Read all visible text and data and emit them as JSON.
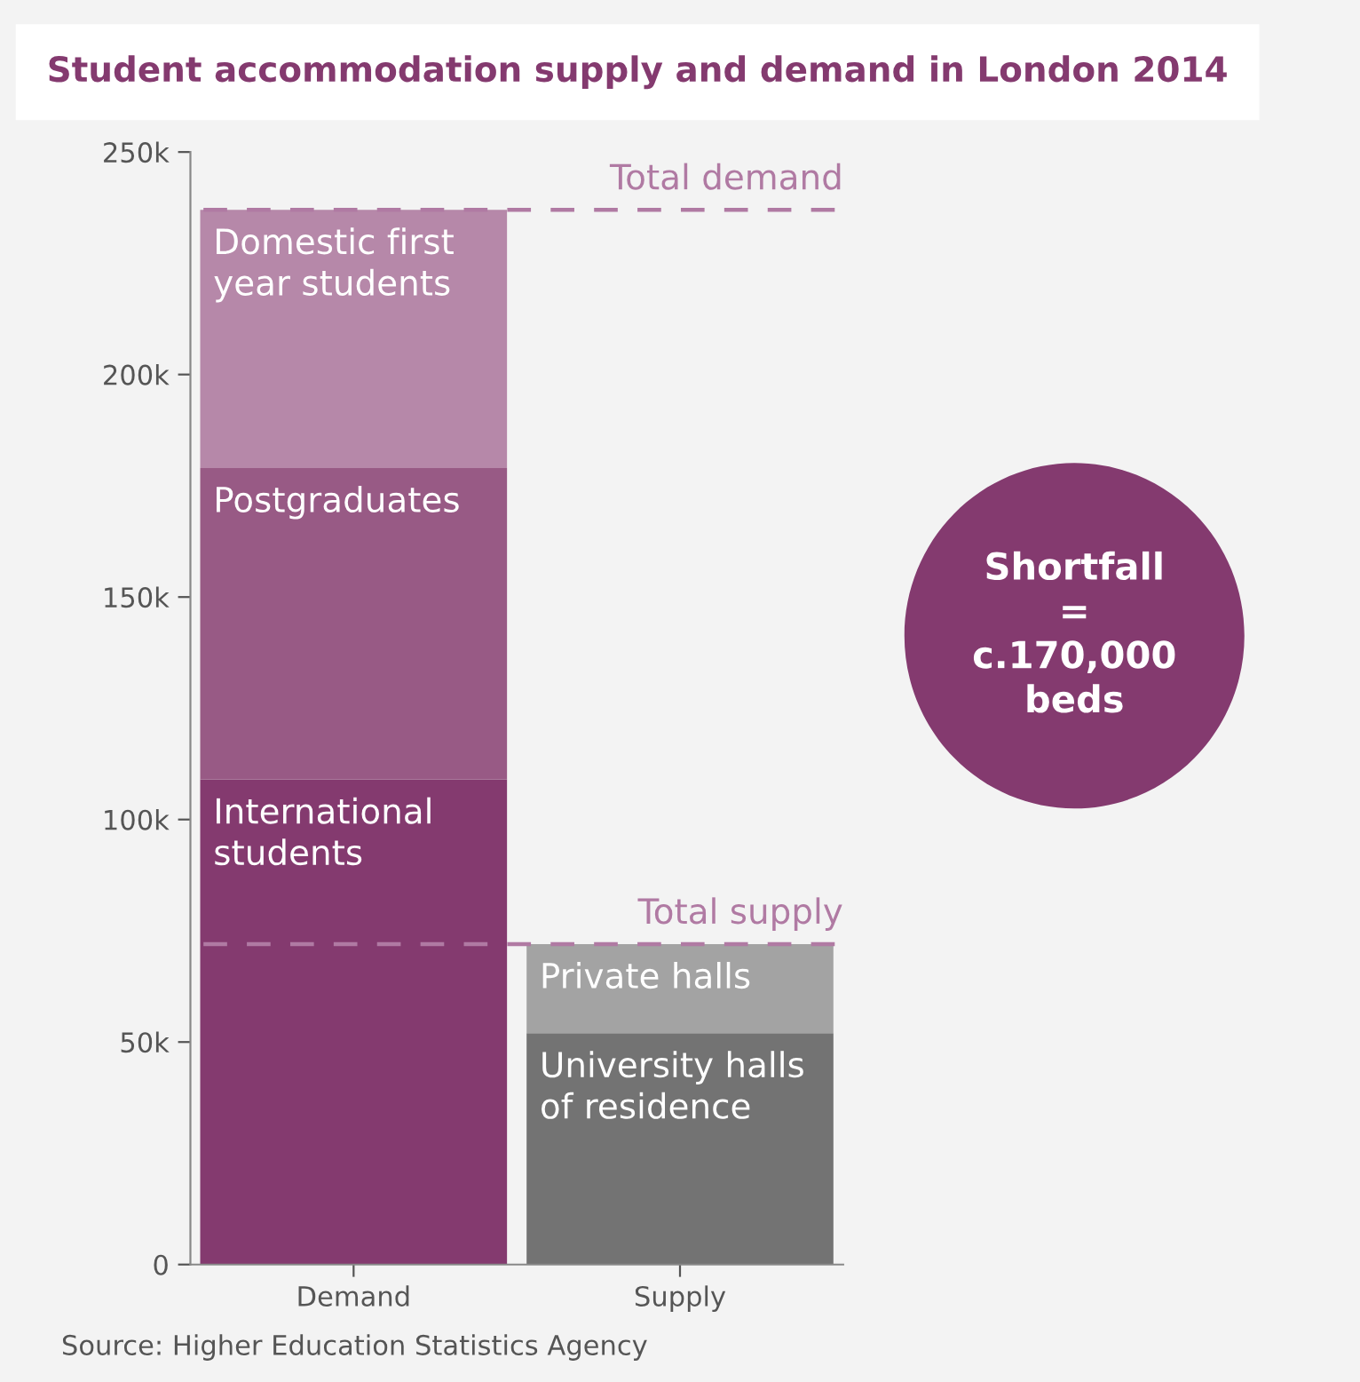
{
  "chart_data": {
    "type": "bar",
    "stacked": true,
    "title": "Student accommodation supply and demand in London 2014",
    "categories": [
      "Demand",
      "Supply"
    ],
    "series": [
      {
        "name": "International students",
        "color": "#843a6f",
        "values": [
          109000,
          null
        ]
      },
      {
        "name": "Postgraduates",
        "color": "#985a85",
        "values": [
          70000,
          null
        ]
      },
      {
        "name": "Domestic first year students",
        "color": "#b688a9",
        "values": [
          58000,
          null
        ]
      },
      {
        "name": "University halls of residence",
        "color": "#737373",
        "values": [
          null,
          52000
        ]
      },
      {
        "name": "Private halls",
        "color": "#a3a3a3",
        "values": [
          null,
          20000
        ]
      }
    ],
    "ylim": [
      0,
      250000
    ],
    "yticks": [
      0,
      {
        "value": 50000,
        "label": "50k"
      },
      {
        "value": 100000,
        "label": "100k"
      },
      {
        "value": 150000,
        "label": "150k"
      },
      {
        "value": 200000,
        "label": "200k"
      },
      {
        "value": 250000,
        "label": "250k"
      }
    ],
    "ref_lines": [
      {
        "axis": "y",
        "value": 237000,
        "label": "Total demand",
        "color": "#b07aa3",
        "line_style": "dashed"
      },
      {
        "axis": "y",
        "value": 72000,
        "label": "Total supply",
        "color": "#b07aa3",
        "line_style": "dashed"
      }
    ],
    "annotations": [
      "Shortfall\n=\nc.170,000\nbeds",
      "Source: Higher Education Statistics Agency"
    ],
    "grid": false,
    "legend": false
  }
}
